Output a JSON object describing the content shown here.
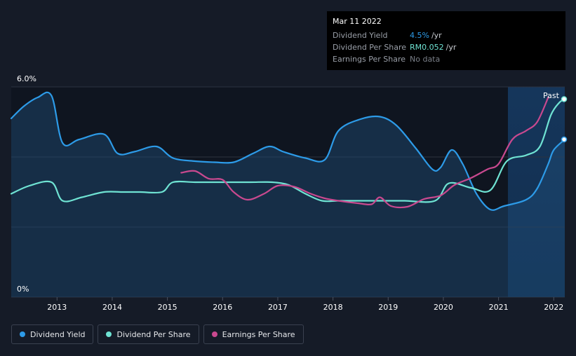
{
  "tooltip": {
    "date": "Mar 11 2022",
    "rows": [
      {
        "label": "Dividend Yield",
        "value": "4.5%",
        "unit": "/yr",
        "color": "#2d9be8"
      },
      {
        "label": "Dividend Per Share",
        "value": "RM0.052",
        "unit": "/yr",
        "color": "#6fe3d3"
      },
      {
        "label": "Earnings Per Share",
        "value": "No data",
        "unit": "",
        "color": "#7a7f88"
      }
    ]
  },
  "chart_data": {
    "type": "line",
    "y_top_label": "6.0%",
    "y_bottom_label": "0%",
    "ylim": [
      0,
      6
    ],
    "xlim": [
      2012.17,
      2022.2
    ],
    "x_ticks": [
      "2013",
      "2014",
      "2015",
      "2016",
      "2017",
      "2018",
      "2019",
      "2020",
      "2021",
      "2022"
    ],
    "forecast_label": "Past",
    "past_region_start": 2021.17,
    "legend": [
      "Dividend Yield",
      "Dividend Per Share",
      "Earnings Per Share"
    ],
    "series": [
      {
        "name": "Dividend Yield",
        "color": "#2d9be8",
        "filled": true,
        "points": [
          [
            2012.17,
            5.1
          ],
          [
            2012.4,
            5.45
          ],
          [
            2012.65,
            5.7
          ],
          [
            2012.9,
            5.75
          ],
          [
            2013.1,
            4.4
          ],
          [
            2013.4,
            4.5
          ],
          [
            2013.85,
            4.65
          ],
          [
            2014.1,
            4.1
          ],
          [
            2014.4,
            4.15
          ],
          [
            2014.8,
            4.3
          ],
          [
            2015.1,
            3.97
          ],
          [
            2015.5,
            3.88
          ],
          [
            2015.85,
            3.85
          ],
          [
            2016.2,
            3.85
          ],
          [
            2016.55,
            4.1
          ],
          [
            2016.85,
            4.3
          ],
          [
            2017.1,
            4.15
          ],
          [
            2017.5,
            3.97
          ],
          [
            2017.85,
            3.92
          ],
          [
            2018.1,
            4.75
          ],
          [
            2018.5,
            5.08
          ],
          [
            2018.85,
            5.15
          ],
          [
            2019.15,
            4.9
          ],
          [
            2019.5,
            4.25
          ],
          [
            2019.8,
            3.65
          ],
          [
            2019.95,
            3.7
          ],
          [
            2020.15,
            4.2
          ],
          [
            2020.35,
            3.8
          ],
          [
            2020.6,
            2.95
          ],
          [
            2020.85,
            2.5
          ],
          [
            2021.1,
            2.6
          ],
          [
            2021.5,
            2.78
          ],
          [
            2021.7,
            3.1
          ],
          [
            2021.9,
            3.8
          ],
          [
            2022.0,
            4.2
          ],
          [
            2022.2,
            4.5
          ]
        ]
      },
      {
        "name": "Dividend Per Share",
        "color": "#6fe3d3",
        "filled": false,
        "points": [
          [
            2012.17,
            2.95
          ],
          [
            2012.5,
            3.18
          ],
          [
            2012.9,
            3.28
          ],
          [
            2013.1,
            2.75
          ],
          [
            2013.45,
            2.85
          ],
          [
            2013.85,
            3.0
          ],
          [
            2014.2,
            3.0
          ],
          [
            2014.5,
            3.0
          ],
          [
            2014.9,
            3.0
          ],
          [
            2015.1,
            3.28
          ],
          [
            2015.5,
            3.28
          ],
          [
            2016.0,
            3.28
          ],
          [
            2016.5,
            3.28
          ],
          [
            2016.9,
            3.28
          ],
          [
            2017.2,
            3.2
          ],
          [
            2017.5,
            2.95
          ],
          [
            2017.8,
            2.75
          ],
          [
            2018.1,
            2.75
          ],
          [
            2018.5,
            2.75
          ],
          [
            2018.9,
            2.75
          ],
          [
            2019.3,
            2.75
          ],
          [
            2019.85,
            2.75
          ],
          [
            2020.1,
            3.25
          ],
          [
            2020.5,
            3.12
          ],
          [
            2020.85,
            3.05
          ],
          [
            2021.15,
            3.88
          ],
          [
            2021.5,
            4.05
          ],
          [
            2021.75,
            4.3
          ],
          [
            2021.95,
            5.2
          ],
          [
            2022.1,
            5.55
          ],
          [
            2022.2,
            5.65
          ]
        ]
      },
      {
        "name": "Earnings Per Share",
        "color": "#c9498f",
        "filled": false,
        "points": [
          [
            2015.25,
            3.55
          ],
          [
            2015.5,
            3.6
          ],
          [
            2015.75,
            3.38
          ],
          [
            2016.0,
            3.35
          ],
          [
            2016.2,
            3.0
          ],
          [
            2016.45,
            2.78
          ],
          [
            2016.75,
            2.95
          ],
          [
            2017.0,
            3.18
          ],
          [
            2017.3,
            3.15
          ],
          [
            2017.6,
            2.95
          ],
          [
            2017.85,
            2.82
          ],
          [
            2018.1,
            2.75
          ],
          [
            2018.45,
            2.68
          ],
          [
            2018.7,
            2.65
          ],
          [
            2018.85,
            2.85
          ],
          [
            2019.05,
            2.6
          ],
          [
            2019.35,
            2.58
          ],
          [
            2019.65,
            2.8
          ],
          [
            2019.95,
            2.9
          ],
          [
            2020.2,
            3.2
          ],
          [
            2020.5,
            3.4
          ],
          [
            2020.8,
            3.65
          ],
          [
            2021.0,
            3.8
          ],
          [
            2021.25,
            4.5
          ],
          [
            2021.5,
            4.75
          ],
          [
            2021.7,
            5.0
          ],
          [
            2021.9,
            5.7
          ]
        ]
      }
    ]
  }
}
